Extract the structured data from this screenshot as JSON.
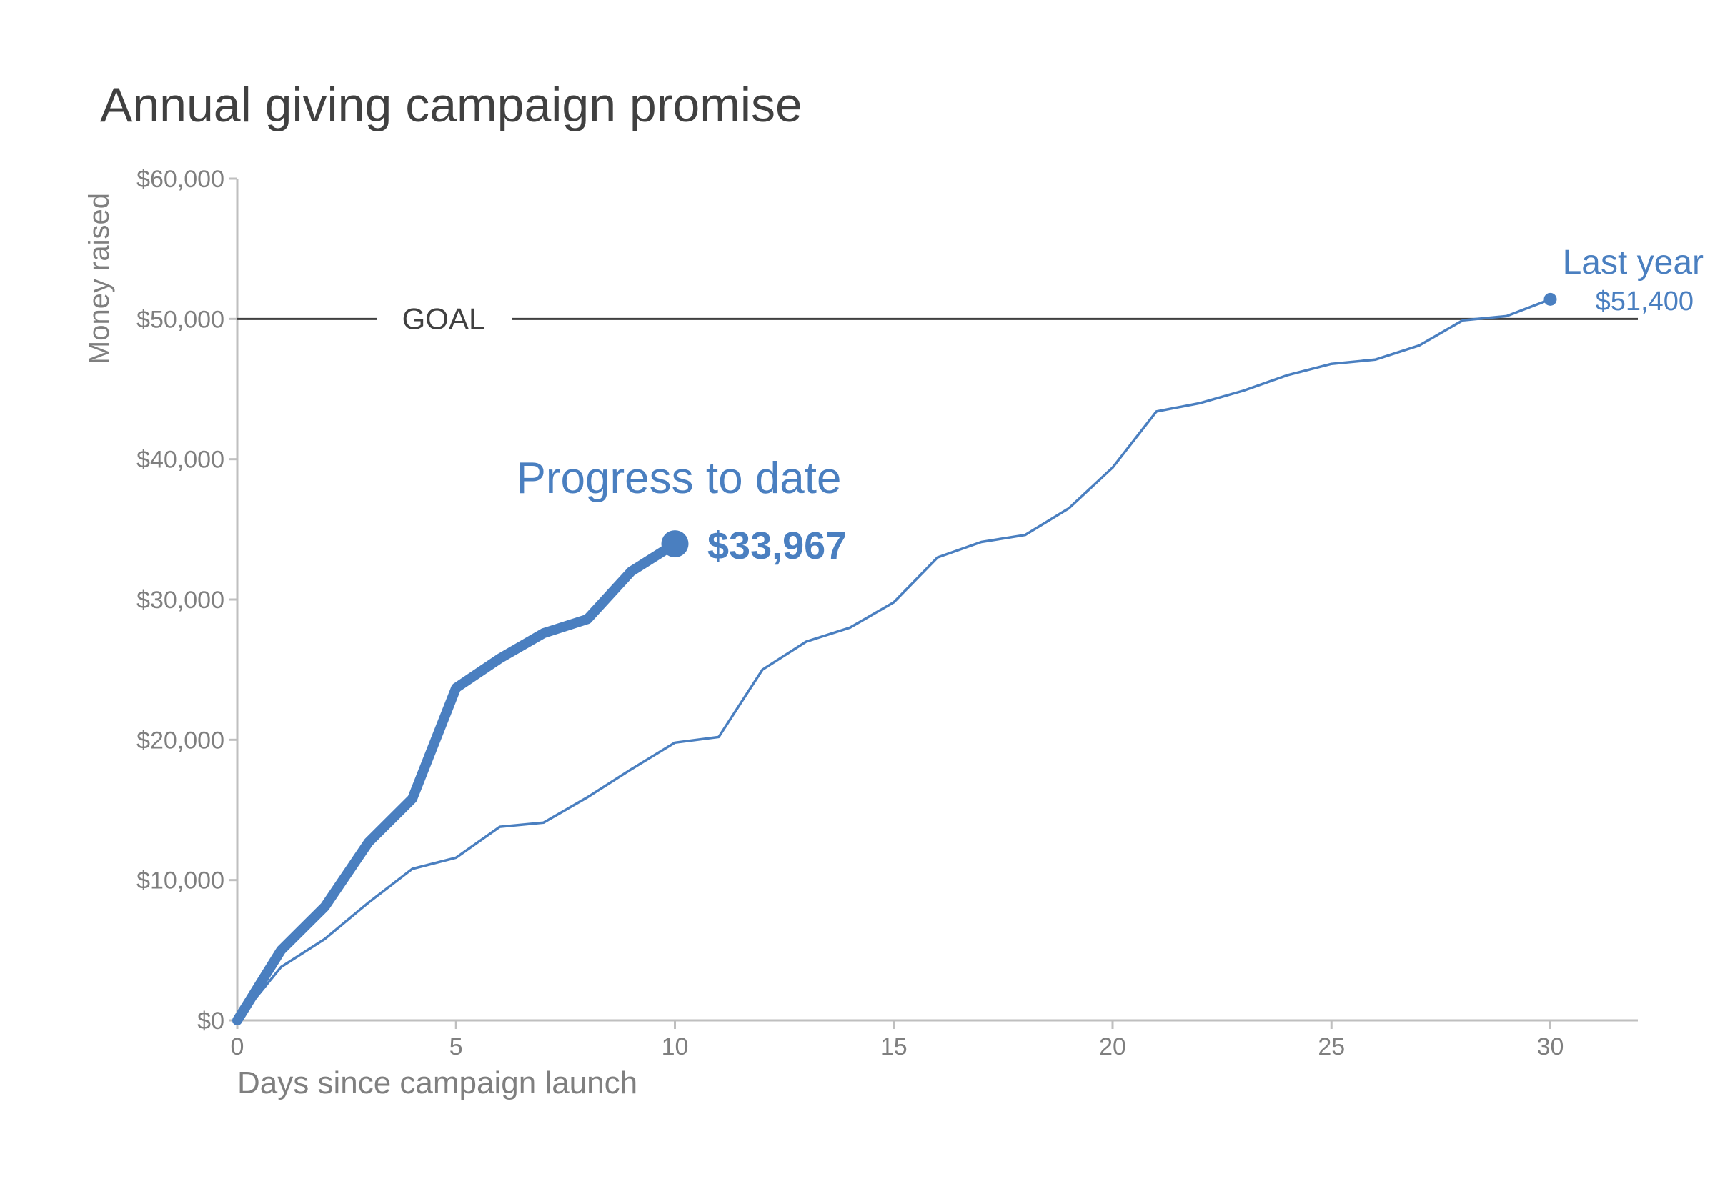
{
  "chart_data": {
    "type": "line",
    "title": "Annual giving campaign promise",
    "xlabel": "Days since campaign launch",
    "ylabel": "Money raised",
    "xlim": [
      0,
      32
    ],
    "ylim": [
      0,
      60000
    ],
    "x_ticks": [
      0,
      5,
      10,
      15,
      20,
      25,
      30
    ],
    "y_ticks": [
      0,
      10000,
      20000,
      30000,
      40000,
      50000,
      60000
    ],
    "y_tick_labels": [
      "$0",
      "$10,000",
      "$20,000",
      "$30,000",
      "$40,000",
      "$50,000",
      "$60,000"
    ],
    "grid": false,
    "goal": {
      "value": 50000,
      "label": "GOAL"
    },
    "series": [
      {
        "name": "Last year",
        "end_label": "$51,400",
        "x": [
          0,
          1,
          2,
          3,
          4,
          5,
          6,
          7,
          8,
          9,
          10,
          11,
          12,
          13,
          14,
          15,
          16,
          17,
          18,
          19,
          20,
          21,
          22,
          23,
          24,
          25,
          26,
          27,
          28,
          29,
          30
        ],
        "values": [
          0,
          3800,
          5800,
          8400,
          10800,
          11600,
          13800,
          14100,
          15900,
          17900,
          19800,
          20200,
          25000,
          27000,
          28000,
          29800,
          33000,
          34100,
          34600,
          36500,
          39400,
          43400,
          44000,
          44900,
          46000,
          46800,
          47100,
          48100,
          49900,
          50200,
          51400
        ]
      },
      {
        "name": "Progress to date",
        "end_label": "$33,967",
        "x": [
          0,
          1,
          2,
          3,
          4,
          5,
          6,
          7,
          8,
          9,
          10
        ],
        "values": [
          0,
          5000,
          8100,
          12700,
          15800,
          23700,
          25800,
          27600,
          28600,
          32000,
          33967
        ]
      }
    ],
    "colors": {
      "series": "#4a7fc0",
      "title": "#404040",
      "axis_text": "#7f7f7f",
      "axis_line": "#bfbfbf",
      "goal_line": "#404040"
    }
  }
}
